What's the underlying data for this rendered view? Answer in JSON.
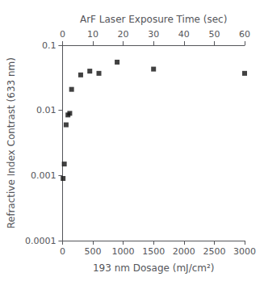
{
  "chart_data": {
    "type": "scatter",
    "xlabel": "193 nm Dosage (mJ/cm²)",
    "x2label": "ArF Laser Exposure Time (sec)",
    "ylabel": "Refractive Index Contrast (633 nm)",
    "x": [
      10,
      30,
      60,
      90,
      120,
      150,
      300,
      450,
      600,
      900,
      1500,
      3000
    ],
    "values": [
      0.0009,
      0.0015,
      0.006,
      0.0085,
      0.009,
      0.021,
      0.035,
      0.04,
      0.037,
      0.055,
      0.043,
      0.037
    ],
    "color": "#111111",
    "marker": "square",
    "log": "y",
    "xlim": [
      0,
      3000
    ],
    "xticks": [
      0,
      500,
      1000,
      1500,
      2000,
      2500,
      3000
    ],
    "x2lim": [
      0,
      60
    ],
    "x2ticks": [
      0,
      10,
      20,
      30,
      40,
      50,
      60
    ],
    "ylim": [
      0.0001,
      0.1
    ],
    "yticks": [
      0.0001,
      0.001,
      0.01,
      0.1
    ],
    "grid": false
  }
}
